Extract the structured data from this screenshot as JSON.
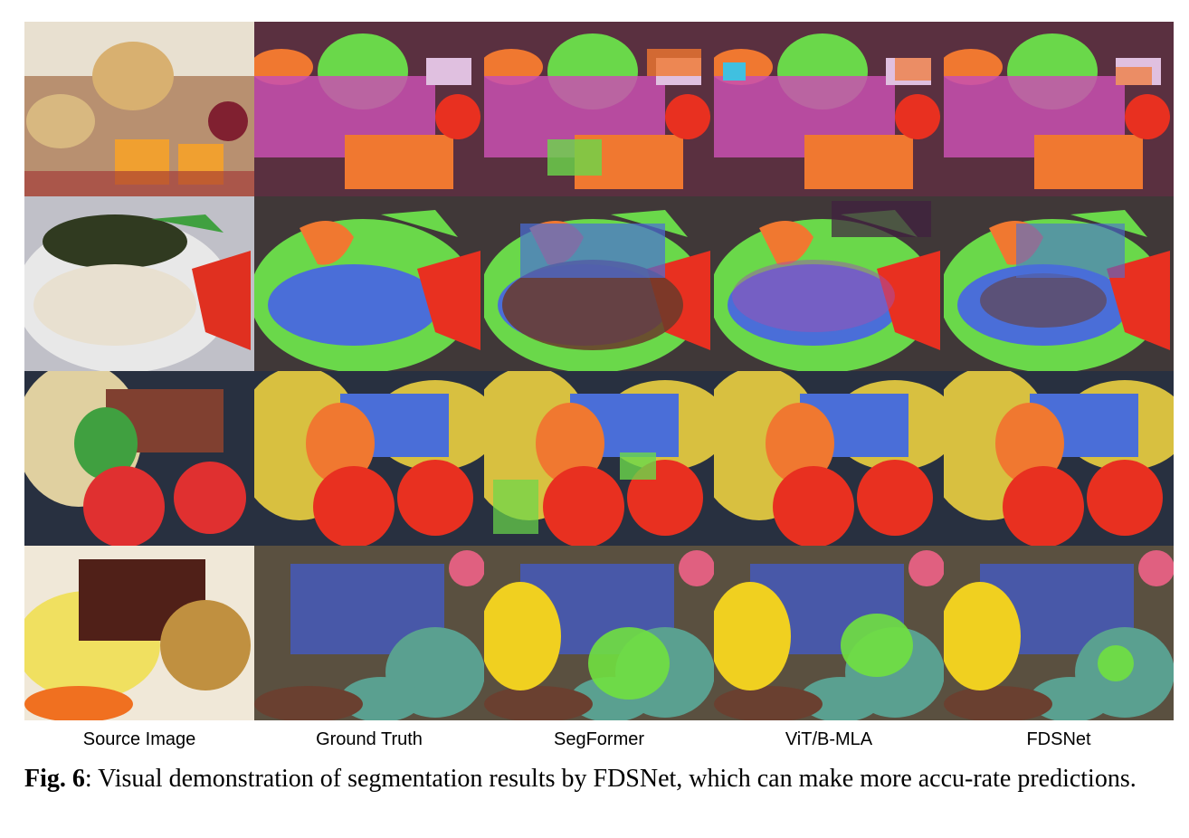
{
  "figure": {
    "columns": [
      "Source Image",
      "Ground Truth",
      "SegFormer",
      "ViT/B-MLA",
      "FDSNet"
    ],
    "caption_label": "Fig. 6",
    "caption_text": ": Visual demonstration of segmentation results by FDSNet, which can make more accu-rate predictions.",
    "rows": 4
  },
  "colors": {
    "orange": "#f07830",
    "green": "#6ad84a",
    "magenta": "#c850b0",
    "red": "#e83020",
    "blue": "#4a6ed8",
    "brown": "#6a3a2a",
    "yellow": "#d8c040",
    "teal": "#5aa090",
    "navy": "#4858a8",
    "pink": "#e06080",
    "dark": "#3a3a3a"
  }
}
